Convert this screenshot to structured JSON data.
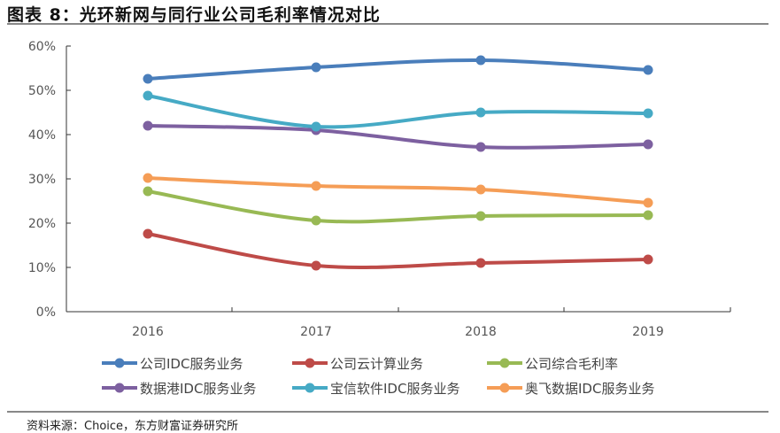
{
  "title": "图表 8：光环新网与同行业公司毛利率情况对比",
  "source": "资料来源：Choice，东方财富证券研究所",
  "chart_data": {
    "type": "line",
    "title": "",
    "xlabel": "",
    "ylabel": "",
    "categories": [
      "2016",
      "2017",
      "2018",
      "2019"
    ],
    "yticks": [
      "0%",
      "10%",
      "20%",
      "30%",
      "40%",
      "50%",
      "60%"
    ],
    "ylim": [
      0,
      60
    ],
    "grid": false,
    "legend": "bottom",
    "smooth": true,
    "series": [
      {
        "name": "公司IDC服务业务",
        "color": "#4a7ebb",
        "values": [
          52.6,
          55.2,
          56.8,
          54.6
        ]
      },
      {
        "name": "公司云计算业务",
        "color": "#be4b48",
        "values": [
          17.6,
          10.4,
          11.0,
          11.8
        ]
      },
      {
        "name": "公司综合毛利率",
        "color": "#98b954",
        "values": [
          27.2,
          20.6,
          21.6,
          21.8
        ]
      },
      {
        "name": "数据港IDC服务业务",
        "color": "#7d60a0",
        "values": [
          42.0,
          41.0,
          37.2,
          37.8
        ]
      },
      {
        "name": "宝信软件IDC服务业务",
        "color": "#46aac5",
        "values": [
          48.8,
          41.8,
          45.0,
          44.8
        ]
      },
      {
        "name": "奥飞数据IDC服务业务",
        "color": "#f59d56",
        "values": [
          30.2,
          28.4,
          27.6,
          24.6
        ]
      }
    ]
  }
}
